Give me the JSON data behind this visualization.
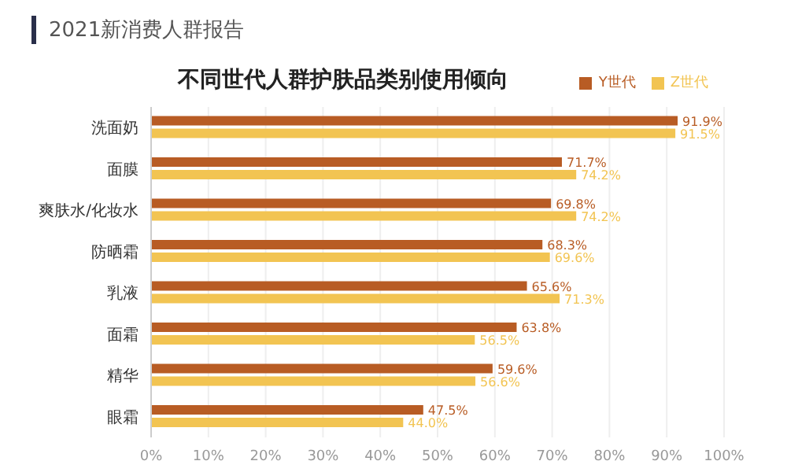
{
  "chart_data": {
    "type": "bar",
    "orientation": "horizontal",
    "subtitle": "2021新消费人群报告",
    "title": "不同世代人群护肤品类别使用倾向",
    "categories": [
      "洗面奶",
      "面膜",
      "爽肤水/化妆水",
      "防晒霜",
      "乳液",
      "面霜",
      "精华",
      "眼霜"
    ],
    "series": [
      {
        "name": "Y世代",
        "color": "#b85c24",
        "values": [
          91.9,
          71.7,
          69.8,
          68.3,
          65.6,
          63.8,
          59.6,
          47.5
        ],
        "value_labels": [
          "91.9%",
          "71.7%",
          "69.8%",
          "68.3%",
          "65.6%",
          "63.8%",
          "59.6%",
          "47.5%"
        ]
      },
      {
        "name": "Z世代",
        "color": "#f2c452",
        "values": [
          91.5,
          74.2,
          74.2,
          69.6,
          71.3,
          56.5,
          56.6,
          44.0
        ],
        "value_labels": [
          "91.5%",
          "74.2%",
          "74.2%",
          "69.6%",
          "71.3%",
          "56.5%",
          "56.6%",
          "44.0%"
        ]
      }
    ],
    "xlim": [
      0,
      100
    ],
    "xticks": [
      {
        "value": 0,
        "label": "0%"
      },
      {
        "value": 10,
        "label": "10%"
      },
      {
        "value": 20,
        "label": "20%"
      },
      {
        "value": 30,
        "label": "30%"
      },
      {
        "value": 40,
        "label": "40%"
      },
      {
        "value": 50,
        "label": "50%"
      },
      {
        "value": 60,
        "label": "60%"
      },
      {
        "value": 70,
        "label": "70%"
      },
      {
        "value": 80,
        "label": "80%"
      },
      {
        "value": 90,
        "label": "90%"
      },
      {
        "value": 100,
        "label": "100%"
      }
    ],
    "grid": "x",
    "legend": "top right"
  }
}
